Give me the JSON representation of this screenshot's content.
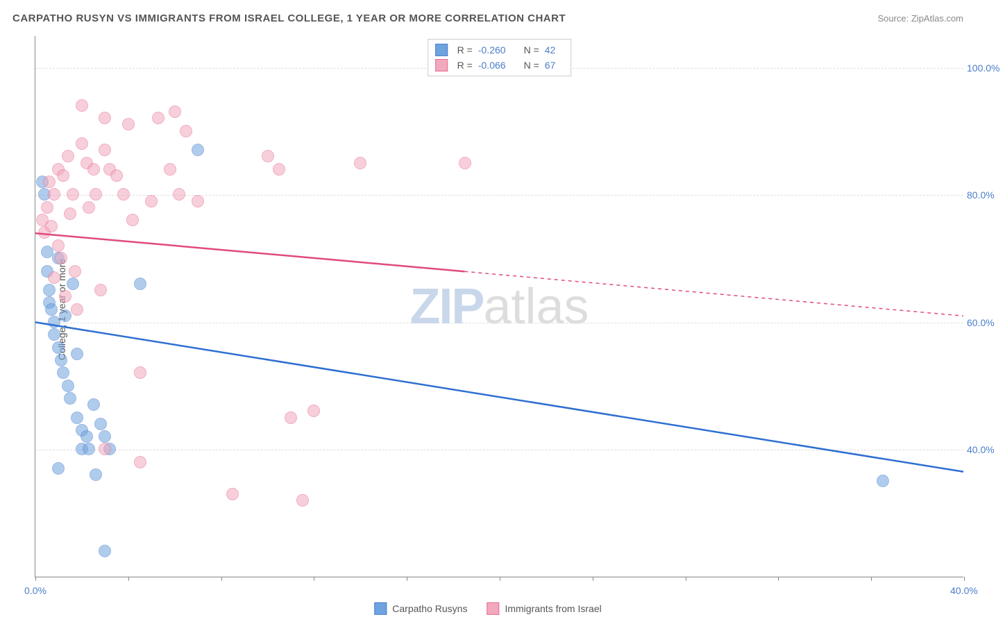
{
  "title": "CARPATHO RUSYN VS IMMIGRANTS FROM ISRAEL COLLEGE, 1 YEAR OR MORE CORRELATION CHART",
  "source": "Source: ZipAtlas.com",
  "y_axis_title": "College, 1 year or more",
  "watermark": {
    "part1": "ZIP",
    "part2": "atlas"
  },
  "chart": {
    "type": "scatter",
    "xlim": [
      0,
      40
    ],
    "ylim": [
      20,
      105
    ],
    "x_ticks": [
      0,
      4,
      8,
      12,
      16,
      20,
      24,
      28,
      32,
      36,
      40
    ],
    "x_tick_labels": {
      "0": "0.0%",
      "40": "40.0%"
    },
    "y_grid": [
      40,
      60,
      80,
      100
    ],
    "y_tick_labels": {
      "40": "40.0%",
      "60": "60.0%",
      "80": "80.0%",
      "100": "100.0%"
    },
    "background_color": "#ffffff",
    "grid_color": "#dddddd",
    "axis_color": "#888888",
    "tick_label_color": "#4a7ec9",
    "marker_radius": 9,
    "marker_opacity": 0.55,
    "series": [
      {
        "name": "Carpatho Rusyns",
        "color": "#6fa3e0",
        "stroke": "#4a7ec9",
        "line_color": "#2e6fd1",
        "r": -0.26,
        "n": 42,
        "trend": {
          "x1": 0,
          "y1": 60,
          "x2": 40,
          "y2": 36.5,
          "solid_until_x": 40
        },
        "points": [
          [
            0.3,
            82
          ],
          [
            0.4,
            80
          ],
          [
            0.5,
            71
          ],
          [
            0.5,
            68
          ],
          [
            0.6,
            65
          ],
          [
            0.6,
            63
          ],
          [
            0.7,
            62
          ],
          [
            0.8,
            60
          ],
          [
            0.8,
            58
          ],
          [
            1.0,
            70
          ],
          [
            1.0,
            56
          ],
          [
            1.1,
            54
          ],
          [
            1.2,
            52
          ],
          [
            1.3,
            61
          ],
          [
            1.4,
            50
          ],
          [
            1.5,
            48
          ],
          [
            1.6,
            66
          ],
          [
            1.8,
            55
          ],
          [
            1.8,
            45
          ],
          [
            2.0,
            43
          ],
          [
            2.0,
            40
          ],
          [
            2.2,
            42
          ],
          [
            2.3,
            40
          ],
          [
            2.5,
            47
          ],
          [
            2.6,
            36
          ],
          [
            2.8,
            44
          ],
          [
            3.0,
            42
          ],
          [
            3.2,
            40
          ],
          [
            1.0,
            37
          ],
          [
            3.0,
            24
          ],
          [
            4.5,
            66
          ],
          [
            7.0,
            87
          ],
          [
            36.5,
            35
          ]
        ]
      },
      {
        "name": "Immigrants from Israel",
        "color": "#f2a8bd",
        "stroke": "#e86b92",
        "line_color": "#e04a7a",
        "r": -0.066,
        "n": 67,
        "trend": {
          "x1": 0,
          "y1": 74,
          "x2": 40,
          "y2": 61,
          "solid_until_x": 18.5
        },
        "points": [
          [
            0.3,
            76
          ],
          [
            0.4,
            74
          ],
          [
            0.5,
            78
          ],
          [
            0.6,
            82
          ],
          [
            0.7,
            75
          ],
          [
            0.8,
            80
          ],
          [
            0.8,
            67
          ],
          [
            1.0,
            84
          ],
          [
            1.0,
            72
          ],
          [
            1.1,
            70
          ],
          [
            1.2,
            83
          ],
          [
            1.3,
            64
          ],
          [
            1.4,
            86
          ],
          [
            1.5,
            77
          ],
          [
            1.6,
            80
          ],
          [
            1.7,
            68
          ],
          [
            1.8,
            62
          ],
          [
            2.0,
            94
          ],
          [
            2.0,
            88
          ],
          [
            2.2,
            85
          ],
          [
            2.3,
            78
          ],
          [
            2.5,
            84
          ],
          [
            2.6,
            80
          ],
          [
            2.8,
            65
          ],
          [
            3.0,
            92
          ],
          [
            3.0,
            87
          ],
          [
            3.2,
            84
          ],
          [
            3.5,
            83
          ],
          [
            3.8,
            80
          ],
          [
            4.0,
            91
          ],
          [
            4.2,
            76
          ],
          [
            4.5,
            38
          ],
          [
            5.0,
            79
          ],
          [
            5.3,
            92
          ],
          [
            5.8,
            84
          ],
          [
            6.0,
            93
          ],
          [
            6.2,
            80
          ],
          [
            6.5,
            90
          ],
          [
            7.0,
            79
          ],
          [
            4.5,
            52
          ],
          [
            3.0,
            40
          ],
          [
            8.5,
            33
          ],
          [
            10.0,
            86
          ],
          [
            10.5,
            84
          ],
          [
            11.5,
            32
          ],
          [
            11.0,
            45
          ],
          [
            12.0,
            46
          ],
          [
            14.0,
            85
          ],
          [
            18.5,
            85
          ]
        ]
      }
    ]
  },
  "top_legend": {
    "r_label": "R =",
    "n_label": "N ="
  },
  "bottom_legend": {
    "items": [
      "Carpatho Rusyns",
      "Immigrants from Israel"
    ]
  }
}
